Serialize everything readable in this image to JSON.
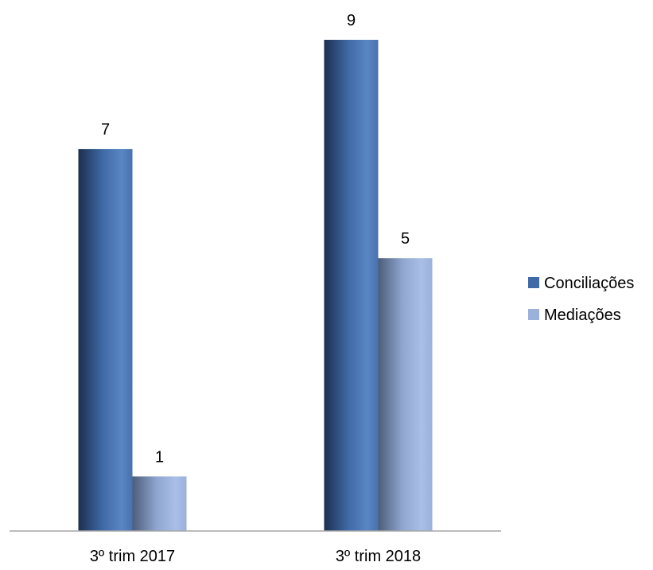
{
  "chart_data": {
    "type": "bar",
    "categories": [
      "3º trim 2017",
      "3º trim 2018"
    ],
    "series": [
      {
        "name": "Conciliações",
        "values": [
          7,
          9
        ],
        "color": "#3f6aa6"
      },
      {
        "name": "Mediações",
        "values": [
          1,
          5
        ],
        "color": "#9bb1db"
      }
    ],
    "ylim": [
      0,
      9
    ],
    "grid": false,
    "legend_position": "right",
    "data_labels": true
  }
}
